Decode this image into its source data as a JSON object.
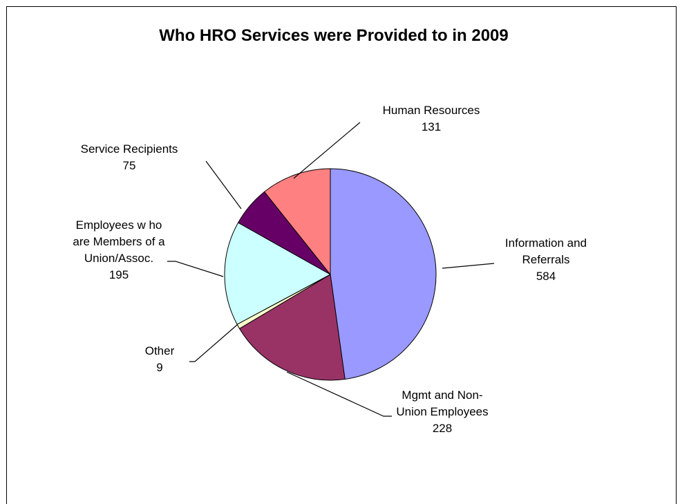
{
  "chart_data": {
    "type": "pie",
    "title": "Who HRO Services were Provided to in 2009",
    "start_angle_deg": 0,
    "direction": "clockwise",
    "slices": [
      {
        "label_lines": [
          "Information and",
          "Referrals"
        ],
        "value": 584,
        "color": "#9999ff"
      },
      {
        "label_lines": [
          "Mgmt and Non-",
          "Union Employees"
        ],
        "value": 228,
        "color": "#993366"
      },
      {
        "label_lines": [
          "Other"
        ],
        "value": 9,
        "color": "#ffffcc"
      },
      {
        "label_lines": [
          "Employees w ho",
          "are Members of a",
          "Union/Assoc."
        ],
        "value": 195,
        "color": "#ccffff"
      },
      {
        "label_lines": [
          "Service Recipients"
        ],
        "value": 75,
        "color": "#660066"
      },
      {
        "label_lines": [
          "Human Resources"
        ],
        "value": 131,
        "color": "#ff8080"
      }
    ]
  }
}
